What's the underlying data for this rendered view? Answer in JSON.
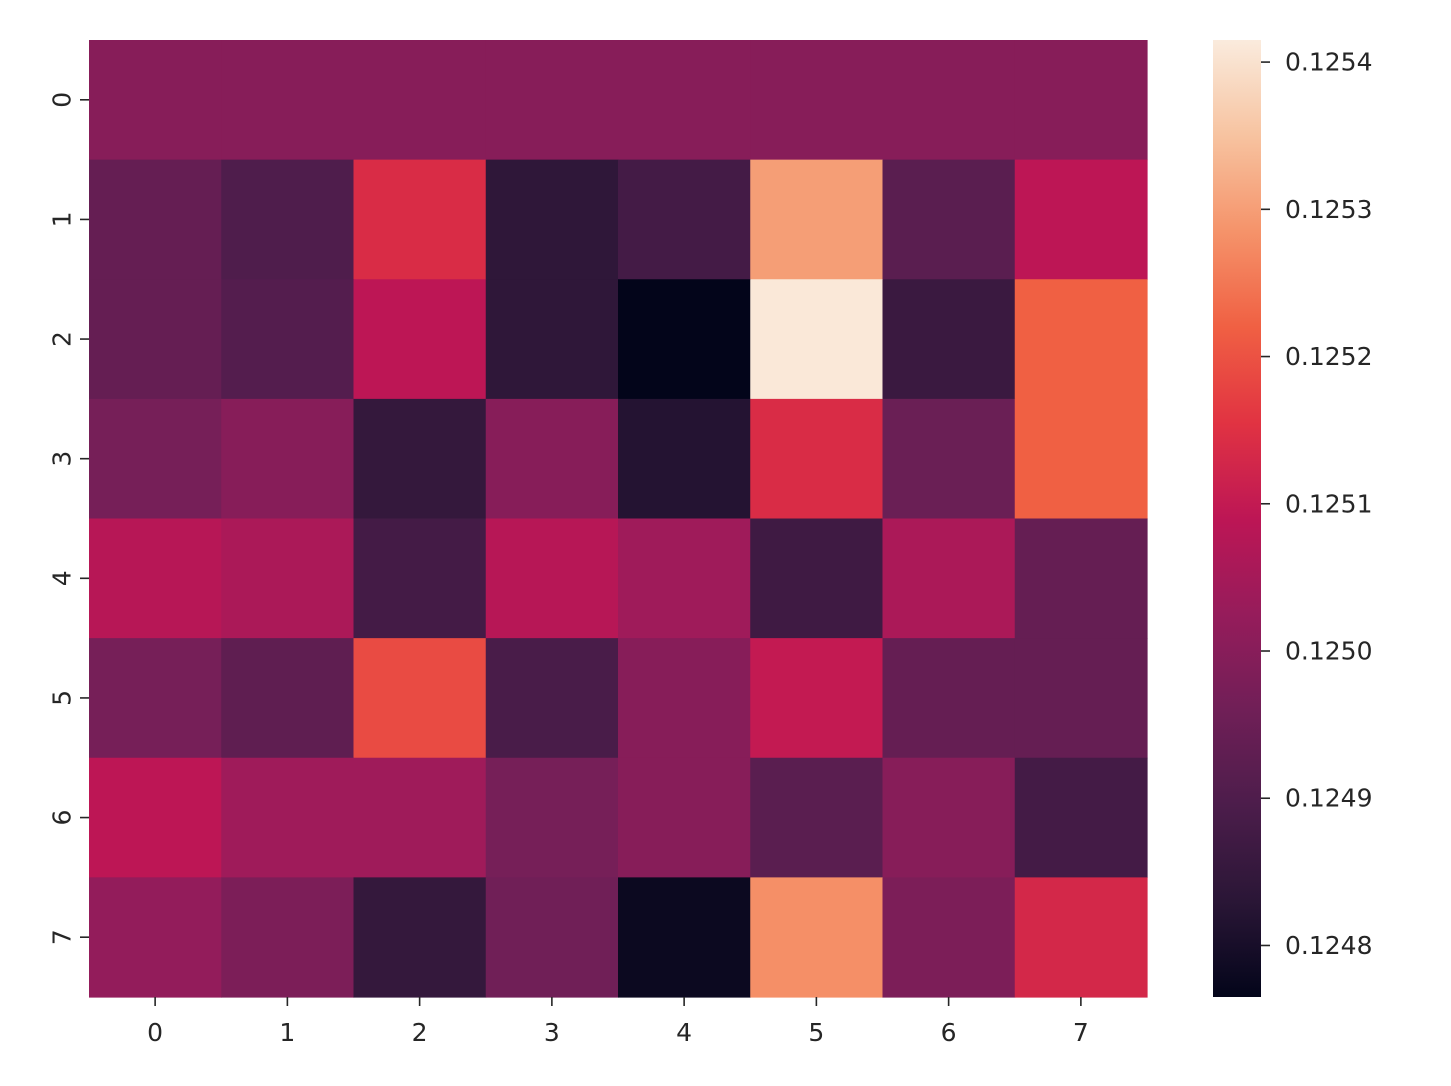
{
  "chart_data": {
    "type": "heatmap",
    "title": "",
    "xlabel": "",
    "ylabel": "",
    "x_categories": [
      "0",
      "1",
      "2",
      "3",
      "4",
      "5",
      "6",
      "7"
    ],
    "y_categories": [
      "0",
      "1",
      "2",
      "3",
      "4",
      "5",
      "6",
      "7"
    ],
    "values": [
      [
        0.125,
        0.125,
        0.125,
        0.125,
        0.125,
        0.125,
        0.125,
        0.125
      ],
      [
        0.12494,
        0.1249,
        0.12514,
        0.12484,
        0.12488,
        0.1253,
        0.12492,
        0.12509
      ],
      [
        0.12494,
        0.12491,
        0.12509,
        0.12484,
        0.12476,
        0.12541,
        0.12486,
        0.12522
      ],
      [
        0.12497,
        0.125,
        0.12485,
        0.125,
        0.12482,
        0.12514,
        0.12495,
        0.12522
      ],
      [
        0.12508,
        0.12506,
        0.12488,
        0.12508,
        0.12504,
        0.12487,
        0.12506,
        0.12494
      ],
      [
        0.12497,
        0.12493,
        0.12519,
        0.12489,
        0.125,
        0.1251,
        0.12494,
        0.12494
      ],
      [
        0.12509,
        0.12504,
        0.12504,
        0.12497,
        0.125,
        0.12492,
        0.125,
        0.12488
      ],
      [
        0.12502,
        0.12498,
        0.12485,
        0.12496,
        0.12478,
        0.12528,
        0.12498,
        0.12513
      ]
    ],
    "colorbar": {
      "min": 0.124765,
      "max": 0.125415,
      "ticks": [
        0.1248,
        0.1249,
        0.125,
        0.1251,
        0.1252,
        0.1253,
        0.1254
      ],
      "tick_labels": [
        "0.1248",
        "0.1249",
        "0.1250",
        "0.1251",
        "0.1252",
        "0.1253",
        "0.1254"
      ]
    },
    "colormap": "rocket",
    "colormap_stops": [
      "#03051a",
      "#2a1636",
      "#4c1d4b",
      "#701f57",
      "#961c5b",
      "#bd1655",
      "#e13342",
      "#f06043",
      "#f5936a",
      "#f7c3a0",
      "#faebdd"
    ],
    "grid": false,
    "legend": "colorbar-right"
  }
}
